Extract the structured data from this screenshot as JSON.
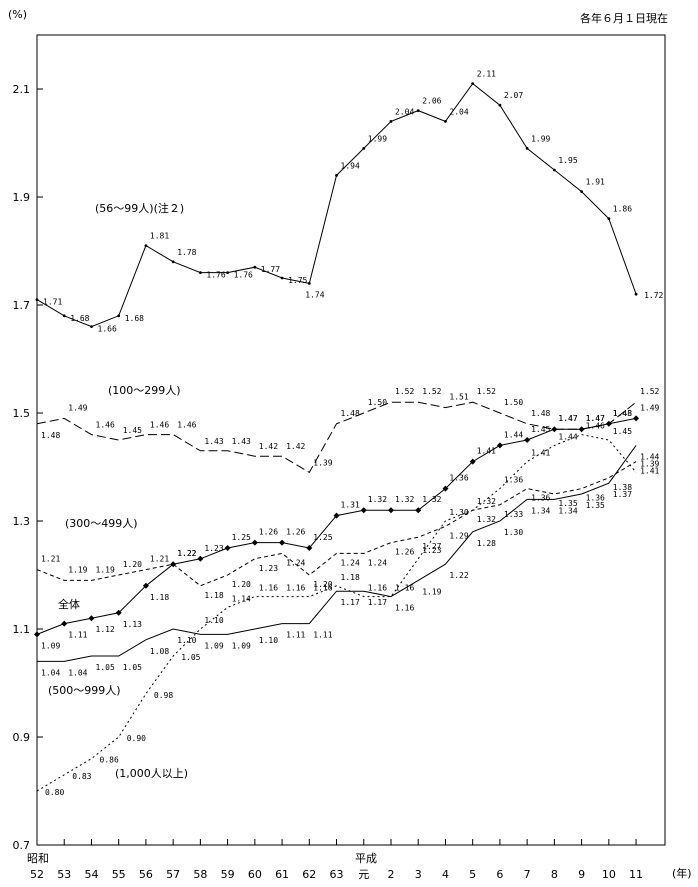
{
  "chart_data": {
    "type": "line",
    "note": "各年６月１日現在",
    "y_unit": "(%)",
    "x_unit": "(年)",
    "era_labels": [
      "昭和",
      "平成"
    ],
    "x_tick_labels": [
      "52",
      "53",
      "54",
      "55",
      "56",
      "57",
      "58",
      "59",
      "60",
      "61",
      "62",
      "63",
      "元",
      "2",
      "3",
      "4",
      "5",
      "6",
      "7",
      "8",
      "9",
      "10",
      "11"
    ],
    "y_ticks": [
      "0.7",
      "0.9",
      "1.1",
      "1.3",
      "1.5",
      "1.7",
      "1.9",
      "2.1"
    ],
    "ylim": [
      0.7,
      2.2
    ],
    "grid": false,
    "series": [
      {
        "name": "(56～99人)(注２)",
        "style": "solid",
        "marker": "dot",
        "values": [
          1.71,
          1.68,
          1.66,
          1.68,
          1.81,
          1.78,
          1.76,
          1.76,
          1.77,
          1.75,
          1.74,
          1.94,
          1.99,
          2.04,
          2.06,
          2.04,
          2.11,
          2.07,
          1.99,
          1.95,
          1.91,
          1.86,
          1.72
        ],
        "labels": [
          "1.71",
          "1.68",
          "1.66",
          "1.68",
          "1.81",
          "1.78",
          "1.76",
          "1.76",
          "1.77",
          "1.75",
          "1.74",
          "1.94",
          "1.99",
          "2.04",
          "2.06",
          "2.04",
          "2.11",
          "2.07",
          "1.99",
          "1.95",
          "1.91",
          "1.86",
          "1.72"
        ]
      },
      {
        "name": "(100～299人)",
        "style": "longdash",
        "marker": "none",
        "values": [
          1.48,
          1.49,
          1.46,
          1.45,
          1.46,
          1.46,
          1.43,
          1.43,
          1.42,
          1.42,
          1.39,
          1.48,
          1.5,
          1.52,
          1.52,
          1.51,
          1.52,
          1.5,
          1.48,
          1.47,
          1.47,
          1.48,
          1.52
        ],
        "labels": [
          "1.48",
          "1.49",
          "1.46",
          "1.45",
          "1.46",
          "1.46",
          "1.43",
          "1.43",
          "1.42",
          "1.42",
          "1.39",
          "1.48",
          "1.50",
          "1.52",
          "1.52",
          "1.51",
          "1.52",
          "1.50",
          "1.48",
          "1.47",
          "1.47",
          "1.48",
          "1.52"
        ]
      },
      {
        "name": "全体",
        "style": "solid",
        "marker": "diamond",
        "values": [
          1.09,
          1.11,
          1.12,
          1.13,
          1.18,
          1.22,
          1.23,
          1.25,
          1.26,
          1.26,
          1.25,
          1.31,
          1.32,
          1.32,
          1.32,
          1.36,
          1.41,
          1.44,
          1.45,
          1.47,
          1.47,
          1.48,
          1.49
        ],
        "labels": [
          "1.09",
          "1.11",
          "1.12",
          "1.13",
          "1.18",
          "1.22",
          "1.23",
          "1.25",
          "1.26",
          "1.26",
          "1.25",
          "1.31",
          "1.32",
          "1.32",
          "1.32",
          "1.36",
          "1.41",
          "1.44",
          "1.45",
          "1.47",
          "1.47",
          "1.48",
          "1.49"
        ]
      },
      {
        "name": "(300～499人)",
        "style": "shortdash",
        "marker": "none",
        "values": [
          1.21,
          1.19,
          1.19,
          1.2,
          1.21,
          1.22,
          1.18,
          1.2,
          1.23,
          1.24,
          1.2,
          1.24,
          1.24,
          1.26,
          1.27,
          1.29,
          1.32,
          1.33,
          1.36,
          1.35,
          1.36,
          1.38,
          1.41
        ],
        "labels": [
          "1.21",
          "1.19",
          "1.19",
          "1.20",
          "1.21",
          "1.22",
          "1.18",
          "1.20",
          "1.23",
          "1.24",
          "1.20",
          "1.24",
          "1.24",
          "1.26",
          "1.27",
          "1.29",
          "1.32",
          "1.33",
          "1.36",
          "1.35",
          "1.36",
          "1.38",
          "1.41"
        ]
      },
      {
        "name": "(500～999人)",
        "style": "solid",
        "marker": "none",
        "values": [
          1.04,
          1.04,
          1.05,
          1.05,
          1.08,
          1.1,
          1.09,
          1.09,
          1.1,
          1.11,
          1.11,
          1.17,
          1.17,
          1.16,
          1.19,
          1.22,
          1.28,
          1.3,
          1.34,
          1.34,
          1.35,
          1.37,
          1.44
        ],
        "labels": [
          "1.04",
          "1.04",
          "1.05",
          "1.05",
          "1.08",
          "1.10",
          "1.09",
          "1.09",
          "1.10",
          "1.11",
          "1.11",
          "1.17",
          "1.17",
          "1.16",
          "1.19",
          "1.22",
          "1.28",
          "1.30",
          "1.34",
          "1.34",
          "1.35",
          "1.37",
          "1.44"
        ]
      },
      {
        "name": "(1,000人以上)",
        "style": "dotted",
        "marker": "none",
        "values": [
          0.8,
          0.83,
          0.86,
          0.9,
          0.98,
          1.05,
          1.1,
          1.14,
          1.16,
          1.16,
          1.16,
          1.18,
          1.16,
          1.16,
          1.23,
          1.3,
          1.32,
          1.36,
          1.41,
          1.44,
          1.46,
          1.45,
          1.39
        ],
        "labels": [
          "0.80",
          "0.83",
          "0.86",
          "0.90",
          "0.98",
          "1.05",
          "1.10",
          "1.14",
          "1.16",
          "1.16",
          "1.16",
          "1.18",
          "1.16",
          "1.16",
          "1.23",
          "1.30",
          "1.32",
          "1.36",
          "1.41",
          "1.44",
          "1.46",
          "1.45",
          "1.39"
        ]
      }
    ]
  }
}
